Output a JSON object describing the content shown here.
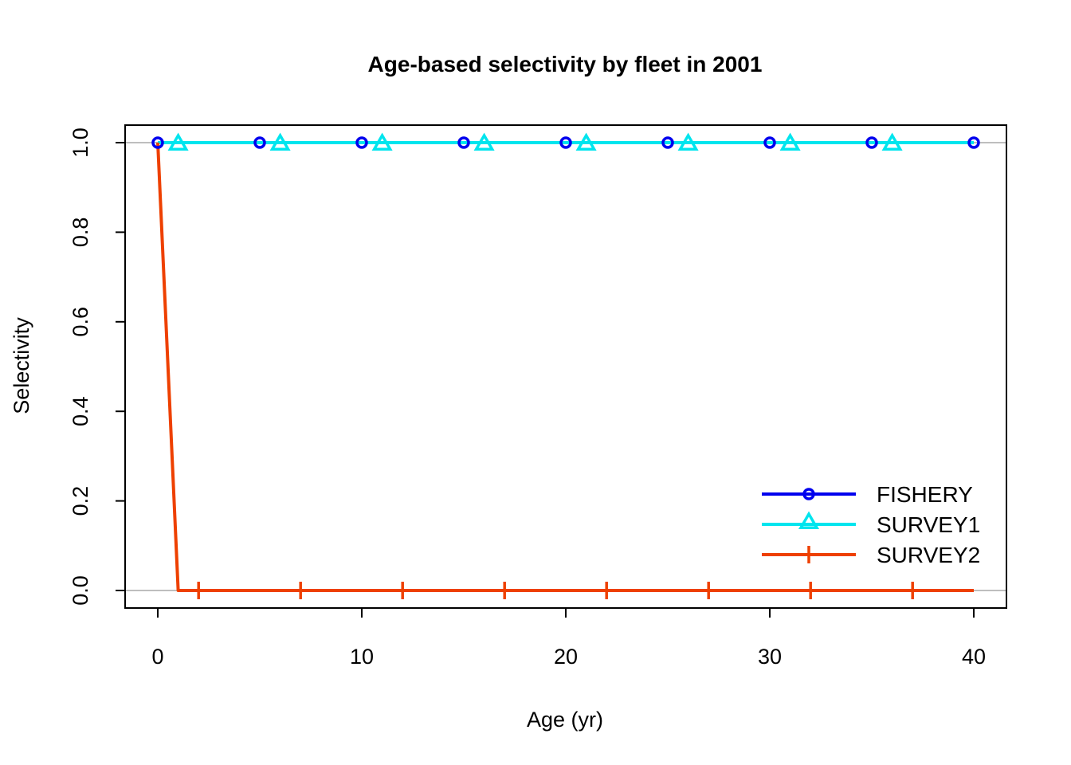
{
  "chart_data": {
    "type": "line",
    "title": "Age-based selectivity by fleet in 2001",
    "xlabel": "Age (yr)",
    "ylabel": "Selectivity",
    "xlim": [
      0,
      40
    ],
    "ylim": [
      0,
      1
    ],
    "x_ticks": [
      "0",
      "10",
      "20",
      "30",
      "40"
    ],
    "y_ticks": [
      "0.0",
      "0.2",
      "0.4",
      "0.6",
      "0.8",
      "1.0"
    ],
    "x_tick_values": [
      0,
      10,
      20,
      30,
      40
    ],
    "y_tick_values": [
      0,
      0.2,
      0.4,
      0.6,
      0.8,
      1.0
    ],
    "reference_lines": [
      0,
      1
    ],
    "legend_position": "bottom-right",
    "series": [
      {
        "name": "FISHERY",
        "color": "#0000ee",
        "marker": "circle",
        "x": [
          0,
          1,
          2,
          3,
          4,
          5,
          6,
          7,
          8,
          9,
          10,
          11,
          12,
          13,
          14,
          15,
          16,
          17,
          18,
          19,
          20,
          21,
          22,
          23,
          24,
          25,
          26,
          27,
          28,
          29,
          30,
          31,
          32,
          33,
          34,
          35,
          36,
          37,
          38,
          39,
          40
        ],
        "y": [
          1,
          1,
          1,
          1,
          1,
          1,
          1,
          1,
          1,
          1,
          1,
          1,
          1,
          1,
          1,
          1,
          1,
          1,
          1,
          1,
          1,
          1,
          1,
          1,
          1,
          1,
          1,
          1,
          1,
          1,
          1,
          1,
          1,
          1,
          1,
          1,
          1,
          1,
          1,
          1,
          1
        ],
        "marker_x": [
          0,
          5,
          10,
          15,
          20,
          25,
          30,
          35,
          40
        ]
      },
      {
        "name": "SURVEY1",
        "color": "#00e5ee",
        "marker": "triangle",
        "x": [
          0,
          1,
          2,
          3,
          4,
          5,
          6,
          7,
          8,
          9,
          10,
          11,
          12,
          13,
          14,
          15,
          16,
          17,
          18,
          19,
          20,
          21,
          22,
          23,
          24,
          25,
          26,
          27,
          28,
          29,
          30,
          31,
          32,
          33,
          34,
          35,
          36,
          37,
          38,
          39,
          40
        ],
        "y": [
          1,
          1,
          1,
          1,
          1,
          1,
          1,
          1,
          1,
          1,
          1,
          1,
          1,
          1,
          1,
          1,
          1,
          1,
          1,
          1,
          1,
          1,
          1,
          1,
          1,
          1,
          1,
          1,
          1,
          1,
          1,
          1,
          1,
          1,
          1,
          1,
          1,
          1,
          1,
          1,
          1
        ],
        "marker_x": [
          1,
          6,
          11,
          16,
          21,
          26,
          31,
          36
        ]
      },
      {
        "name": "SURVEY2",
        "color": "#ee4000",
        "marker": "plus",
        "x": [
          0,
          1,
          2,
          3,
          4,
          5,
          6,
          7,
          8,
          9,
          10,
          11,
          12,
          13,
          14,
          15,
          16,
          17,
          18,
          19,
          20,
          21,
          22,
          23,
          24,
          25,
          26,
          27,
          28,
          29,
          30,
          31,
          32,
          33,
          34,
          35,
          36,
          37,
          38,
          39,
          40
        ],
        "y": [
          1,
          0,
          0,
          0,
          0,
          0,
          0,
          0,
          0,
          0,
          0,
          0,
          0,
          0,
          0,
          0,
          0,
          0,
          0,
          0,
          0,
          0,
          0,
          0,
          0,
          0,
          0,
          0,
          0,
          0,
          0,
          0,
          0,
          0,
          0,
          0,
          0,
          0,
          0,
          0,
          0
        ],
        "marker_x": [
          2,
          7,
          12,
          17,
          22,
          27,
          32,
          37
        ]
      }
    ]
  }
}
